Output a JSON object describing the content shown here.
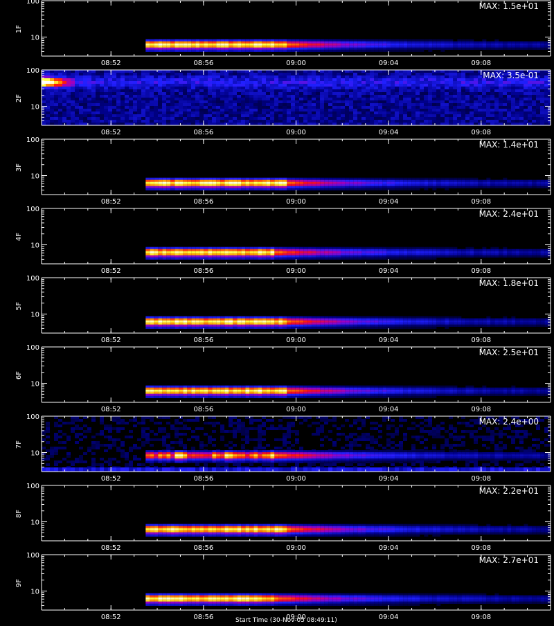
{
  "chart_data": {
    "type": "heatmap",
    "x_range": [
      "08:49",
      "09:11"
    ],
    "x_ticks": [
      "08:52",
      "08:56",
      "09:00",
      "09:04",
      "09:08"
    ],
    "y_scale": "log",
    "y_range": [
      3,
      100
    ],
    "y_ticks": [
      "10",
      "100"
    ],
    "panels": [
      {
        "label": "1F",
        "max_label": "MAX: 1.5e+01",
        "max": 15.0,
        "band_center": 6,
        "band_start": "08:53:30",
        "bright_end": "08:59:30",
        "fade_end": "09:11",
        "profile": "steady"
      },
      {
        "label": "2F",
        "max_label": "MAX: 3.5e-01",
        "max": 0.35,
        "band_center": 50,
        "band_start": "08:49",
        "bright_end": "08:50",
        "fade_end": "09:11",
        "profile": "noise"
      },
      {
        "label": "3F",
        "max_label": "MAX: 1.4e+01",
        "max": 14.0,
        "band_center": 6,
        "band_start": "08:53:30",
        "bright_end": "08:59:30",
        "fade_end": "09:11",
        "profile": "steady"
      },
      {
        "label": "4F",
        "max_label": "MAX: 2.4e+01",
        "max": 24.0,
        "band_center": 6,
        "band_start": "08:53:30",
        "bright_end": "08:59:00",
        "fade_end": "09:11",
        "profile": "steady"
      },
      {
        "label": "5F",
        "max_label": "MAX: 1.8e+01",
        "max": 18.0,
        "band_center": 6,
        "band_start": "08:53:30",
        "bright_end": "08:59:30",
        "fade_end": "09:11",
        "profile": "steady"
      },
      {
        "label": "6F",
        "max_label": "MAX: 2.5e+01",
        "max": 25.0,
        "band_center": 6,
        "band_start": "08:53:30",
        "bright_end": "08:59:30",
        "fade_end": "09:11",
        "profile": "steady"
      },
      {
        "label": "7F",
        "max_label": "MAX: 2.4e+00",
        "max": 2.4,
        "band_center": 8,
        "band_start": "08:53:30",
        "bright_end": "08:59:00",
        "fade_end": "09:11",
        "profile": "noisy"
      },
      {
        "label": "8F",
        "max_label": "MAX: 2.2e+01",
        "max": 22.0,
        "band_center": 6,
        "band_start": "08:53:30",
        "bright_end": "08:59:30",
        "fade_end": "09:11",
        "profile": "steady"
      },
      {
        "label": "9F",
        "max_label": "MAX: 2.7e+01",
        "max": 27.0,
        "band_center": 6,
        "band_start": "08:53:30",
        "bright_end": "08:59:00",
        "fade_end": "09:11",
        "profile": "steady"
      }
    ],
    "colormap": [
      "#000000",
      "#00008a",
      "#2020ff",
      "#a000c0",
      "#ff1010",
      "#ff9a00",
      "#ffff40",
      "#ffffff"
    ],
    "grid": false,
    "legend": "none"
  },
  "footer": {
    "text": "Start Time (30-Nov-05 08:49:11)"
  }
}
